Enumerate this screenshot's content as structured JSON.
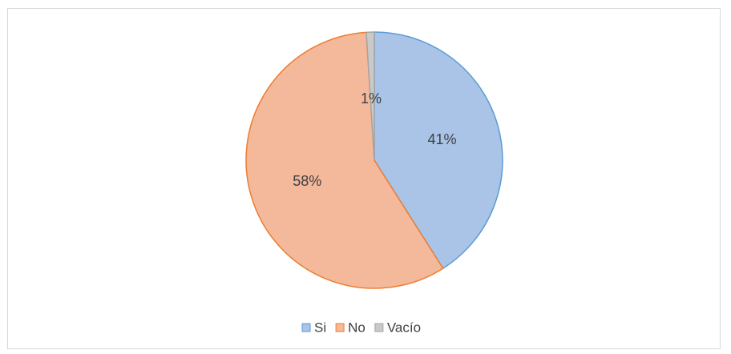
{
  "chart_data": {
    "type": "pie",
    "title": "",
    "legend_position": "bottom",
    "slices": [
      {
        "name": "Si",
        "value": 41,
        "label": "41%",
        "fill": "#a9c4e6",
        "stroke": "#5b9bd5"
      },
      {
        "name": "No",
        "value": 58,
        "label": "58%",
        "fill": "#f4b89b",
        "stroke": "#ed7d31"
      },
      {
        "name": "Vacío",
        "value": 1,
        "label": "1%",
        "fill": "#c9c9c9",
        "stroke": "#a5a5a5"
      }
    ]
  }
}
